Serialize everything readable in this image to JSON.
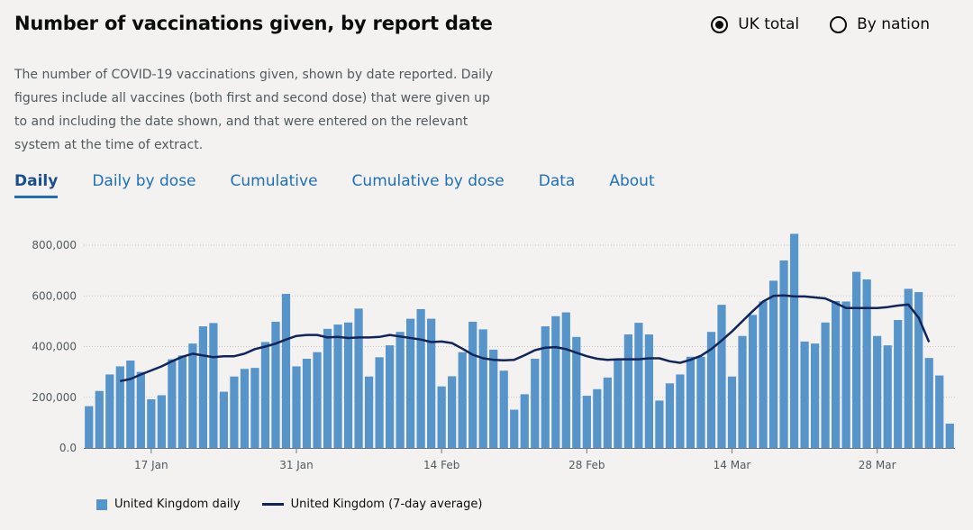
{
  "header": {
    "title": "Number of vaccinations given, by report date",
    "radio_uk_total": "UK total",
    "radio_by_nation": "By nation"
  },
  "description": "The number of COVID-19 vaccinations given, shown by date reported. Daily figures include all vaccines (both first and second dose) that were given up to and including the date shown, and that were entered on the relevant system at the time of extract.",
  "tabs": [
    "Daily",
    "Daily by dose",
    "Cumulative",
    "Cumulative by dose",
    "Data",
    "About"
  ],
  "colors": {
    "bar": "#5694ca",
    "line": "#12255a",
    "axis": "#6f777b",
    "grid": "#c7c7c7"
  },
  "chart_data": {
    "type": "bar",
    "title": "Number of vaccinations given, by report date",
    "xlabel": "",
    "ylabel": "",
    "ylim": [
      0,
      850000
    ],
    "y_ticks": [
      0,
      200000,
      400000,
      600000,
      800000
    ],
    "y_tick_labels": [
      "0.0",
      "200,000",
      "400,000",
      "600,000",
      "800,000"
    ],
    "x_tick_labels": [
      {
        "label": "17 Jan",
        "index": 6
      },
      {
        "label": "31 Jan",
        "index": 20
      },
      {
        "label": "14 Feb",
        "index": 34
      },
      {
        "label": "28 Feb",
        "index": 48
      },
      {
        "label": "14 Mar",
        "index": 62
      },
      {
        "label": "28 Mar",
        "index": 76
      }
    ],
    "series": [
      {
        "name": "United Kingdom daily",
        "type": "bar",
        "values": [
          165000,
          225000,
          290000,
          322000,
          345000,
          300000,
          192000,
          208000,
          350000,
          365000,
          412000,
          480000,
          493000,
          222000,
          282000,
          312000,
          316000,
          418000,
          498000,
          608000,
          322000,
          352000,
          378000,
          470000,
          487000,
          495000,
          550000,
          282000,
          358000,
          405000,
          458000,
          510000,
          548000,
          510000,
          243000,
          283000,
          378000,
          498000,
          468000,
          388000,
          305000,
          151000,
          212000,
          352000,
          480000,
          520000,
          535000,
          438000,
          206000,
          232000,
          278000,
          352000,
          448000,
          494000,
          448000,
          187000,
          255000,
          290000,
          360000,
          360000,
          458000,
          565000,
          282000,
          442000,
          525000,
          578000,
          660000,
          740000,
          845000,
          420000,
          412000,
          495000,
          580000,
          578000,
          695000,
          665000,
          442000,
          405000,
          505000,
          628000,
          615000,
          355000,
          286000,
          96000
        ]
      },
      {
        "name": "United Kingdom (7-day average)",
        "type": "line",
        "start_index": 3,
        "values": [
          264000,
          272000,
          290000,
          306000,
          322000,
          342000,
          360000,
          372000,
          365000,
          358000,
          362000,
          362000,
          372000,
          390000,
          400000,
          412000,
          428000,
          442000,
          446000,
          446000,
          436000,
          438000,
          434000,
          436000,
          436000,
          438000,
          446000,
          440000,
          434000,
          428000,
          418000,
          420000,
          414000,
          392000,
          368000,
          354000,
          348000,
          346000,
          348000,
          366000,
          386000,
          396000,
          398000,
          390000,
          376000,
          362000,
          352000,
          348000,
          350000,
          350000,
          350000,
          354000,
          354000,
          342000,
          336000,
          348000,
          364000,
          390000,
          424000,
          460000,
          500000,
          540000,
          578000,
          600000,
          602000,
          598000,
          598000,
          594000,
          590000,
          572000,
          552000,
          552000,
          552000,
          552000,
          556000,
          562000,
          566000,
          514000,
          418000
        ]
      }
    ],
    "legend": [
      "United Kingdom daily",
      "United Kingdom (7-day average)"
    ],
    "legend_position": "bottom-left",
    "grid": true
  }
}
